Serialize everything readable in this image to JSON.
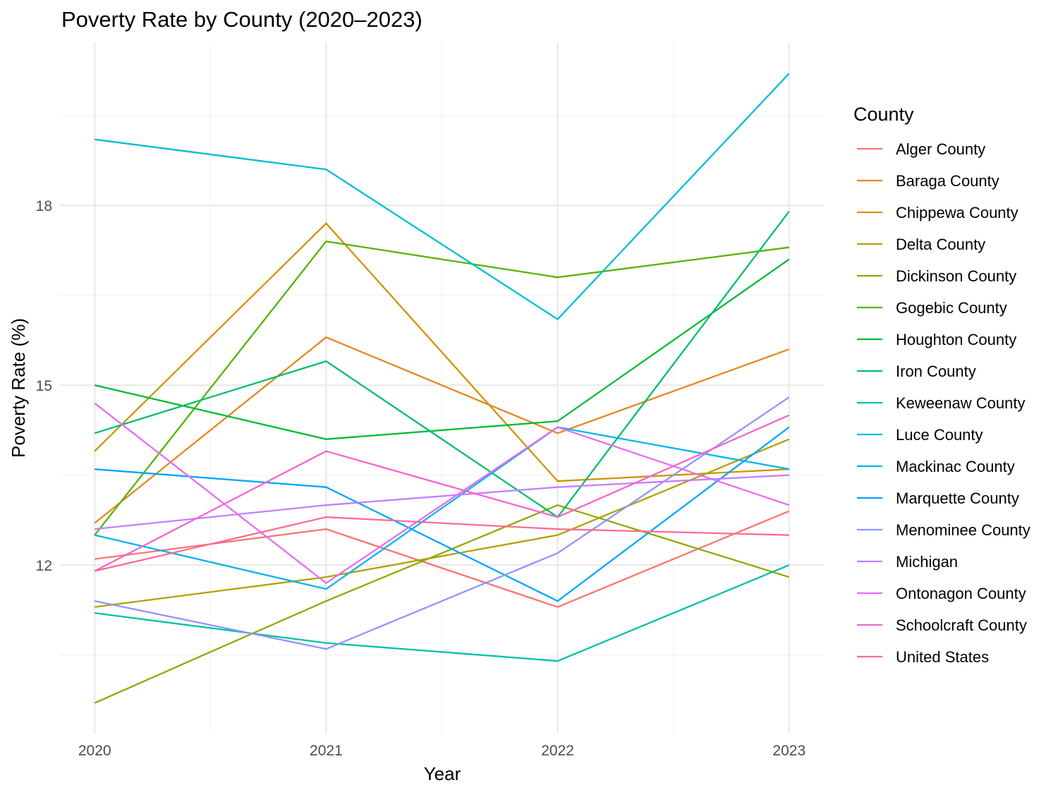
{
  "chart_data": {
    "type": "line",
    "title": "Poverty Rate by County (2020–2023)",
    "xlabel": "Year",
    "ylabel": "Poverty Rate (%)",
    "x": [
      2020,
      2021,
      2022,
      2023
    ],
    "x_tick_labels": [
      "2020",
      "2021",
      "2022",
      "2023"
    ],
    "y_ticks": [
      12,
      15,
      18
    ],
    "y_tick_labels": [
      "12",
      "15",
      "18"
    ],
    "xlim": [
      2019.85,
      2023.15
    ],
    "ylim": [
      9.19,
      20.72
    ],
    "grid": true,
    "legend_title": "County",
    "legend_position": "right",
    "series": [
      {
        "name": "Alger County",
        "color": "#F8766D",
        "values": [
          12.1,
          12.6,
          11.3,
          12.9
        ]
      },
      {
        "name": "Baraga County",
        "color": "#E7851E",
        "values": [
          12.7,
          15.8,
          14.2,
          15.6
        ]
      },
      {
        "name": "Chippewa County",
        "color": "#D09400",
        "values": [
          13.9,
          17.7,
          13.4,
          13.6
        ]
      },
      {
        "name": "Delta County",
        "color": "#B2A100",
        "values": [
          11.3,
          11.8,
          12.5,
          14.1
        ]
      },
      {
        "name": "Dickinson County",
        "color": "#8BAB00",
        "values": [
          9.7,
          11.4,
          13.0,
          11.8
        ]
      },
      {
        "name": "Gogebic County",
        "color": "#55B400",
        "values": [
          12.5,
          17.4,
          16.8,
          17.3
        ]
      },
      {
        "name": "Houghton County",
        "color": "#00BA38",
        "values": [
          15.0,
          14.1,
          14.4,
          17.1
        ]
      },
      {
        "name": "Iron County",
        "color": "#00BE6C",
        "values": [
          14.2,
          15.4,
          12.8,
          17.9
        ]
      },
      {
        "name": "Keweenaw County",
        "color": "#00C1A3",
        "values": [
          11.2,
          10.7,
          10.4,
          12.0
        ]
      },
      {
        "name": "Luce County",
        "color": "#00BDD0",
        "values": [
          19.1,
          18.6,
          16.1,
          20.2
        ]
      },
      {
        "name": "Mackinac County",
        "color": "#00B5EE",
        "values": [
          12.5,
          11.6,
          14.3,
          13.6
        ]
      },
      {
        "name": "Marquette County",
        "color": "#00A5FF",
        "values": [
          13.6,
          13.3,
          11.4,
          14.3
        ]
      },
      {
        "name": "Menominee County",
        "color": "#8F95FF",
        "values": [
          11.4,
          10.6,
          12.2,
          14.8
        ]
      },
      {
        "name": "Michigan",
        "color": "#C27FFF",
        "values": [
          12.6,
          13.0,
          13.3,
          13.5
        ]
      },
      {
        "name": "Ontonagon County",
        "color": "#E46EF0",
        "values": [
          14.7,
          11.7,
          14.3,
          13.0
        ]
      },
      {
        "name": "Schoolcraft County",
        "color": "#F863CF",
        "values": [
          11.9,
          13.9,
          12.8,
          14.5
        ]
      },
      {
        "name": "United States",
        "color": "#FF6A98",
        "values": [
          11.9,
          12.8,
          12.6,
          12.5
        ]
      }
    ]
  }
}
